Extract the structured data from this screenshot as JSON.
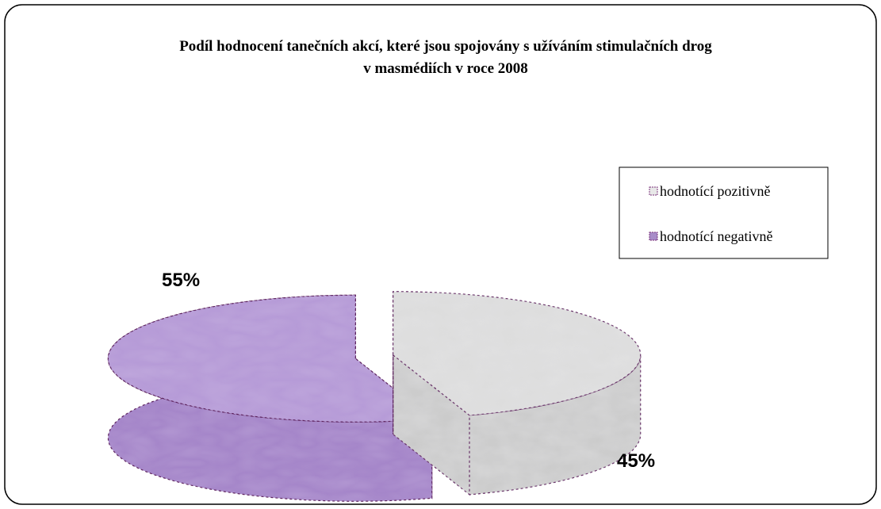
{
  "chart_data": {
    "type": "pie",
    "title": "Podíl hodnocení tanečních akcí, které jsou spojovány s užíváním stimulačních drog",
    "subtitle": "v masmédiích v roce 2008",
    "categories": [
      "hodnotící pozitivně",
      "hodnotící negativně"
    ],
    "values": [
      45,
      55
    ],
    "value_labels": [
      "45%",
      "55%"
    ],
    "colors": [
      "#d9d9d9",
      "#b59ad6"
    ],
    "legend_position": "right",
    "style": "3d-exploded"
  }
}
